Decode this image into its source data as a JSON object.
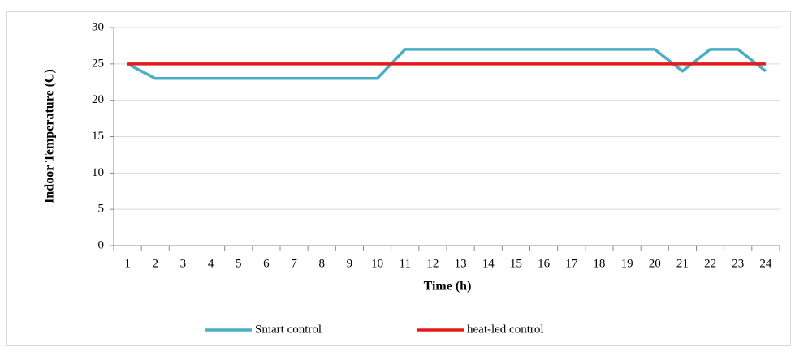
{
  "chart_data": {
    "type": "line",
    "xlabel": "Time (h)",
    "ylabel": "Indoor Temperature (C)",
    "categories": [
      "1",
      "2",
      "3",
      "4",
      "5",
      "6",
      "7",
      "8",
      "9",
      "10",
      "11",
      "12",
      "13",
      "14",
      "15",
      "16",
      "17",
      "18",
      "19",
      "20",
      "21",
      "22",
      "23",
      "24"
    ],
    "series": [
      {
        "name": "Smart control",
        "color": "#4bacc6",
        "values": [
          25,
          23,
          23,
          23,
          23,
          23,
          23,
          23,
          23,
          23,
          27,
          27,
          27,
          27,
          27,
          27,
          27,
          27,
          27,
          27,
          24,
          27,
          27,
          24
        ]
      },
      {
        "name": "heat-led control",
        "color": "#e31a1c",
        "values": [
          25,
          25,
          25,
          25,
          25,
          25,
          25,
          25,
          25,
          25,
          25,
          25,
          25,
          25,
          25,
          25,
          25,
          25,
          25,
          25,
          25,
          25,
          25,
          25
        ]
      }
    ],
    "ylim": [
      0,
      30
    ],
    "yticks": [
      0,
      5,
      10,
      15,
      20,
      25,
      30
    ],
    "grid": true,
    "legend": "bottom"
  }
}
